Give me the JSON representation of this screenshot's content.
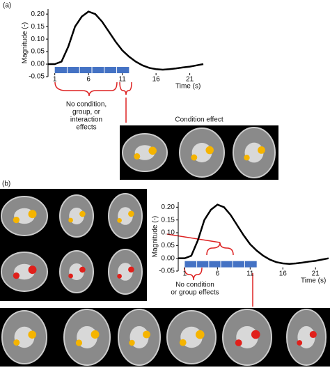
{
  "panels": [
    {
      "label": "(a)",
      "image_caption": "Condition effect"
    },
    {
      "label": "(b)"
    }
  ],
  "chart_data": [
    {
      "type": "line",
      "ylabel": "Magnitude (-)",
      "xlabel": "Time (s)",
      "color": "#000000",
      "x": [
        0,
        1,
        2,
        3,
        4,
        5,
        6,
        7,
        8,
        9,
        10,
        11,
        12,
        13,
        14,
        15,
        16,
        17,
        18,
        19,
        20,
        21,
        22,
        23
      ],
      "values": [
        0,
        0,
        0.01,
        0.07,
        0.15,
        0.19,
        0.21,
        0.2,
        0.17,
        0.13,
        0.09,
        0.055,
        0.03,
        0.01,
        -0.005,
        -0.015,
        -0.02,
        -0.022,
        -0.02,
        -0.017,
        -0.013,
        -0.01,
        -0.005,
        0
      ],
      "xlim": [
        0,
        23
      ],
      "ylim": [
        -0.05,
        0.22
      ],
      "yticks": [
        -0.05,
        {
          "value": 0,
          "label": "0.00"
        },
        0.05,
        {
          "value": 0.1,
          "label": "0.10"
        },
        0.15,
        {
          "value": 0.2,
          "label": "0.20"
        }
      ],
      "xticks": [
        1,
        6,
        11,
        16,
        21
      ],
      "stimulus": [
        1,
        12
      ],
      "stimulus_color": "#4472c4",
      "annotation_lines": [
        "No condition,",
        "group, or",
        "interaction",
        "effects"
      ]
    },
    {
      "type": "line",
      "ylabel": "Magnitude (-)",
      "xlabel": "Time (s)",
      "color": "#000000",
      "x": [
        0,
        1,
        2,
        3,
        4,
        5,
        6,
        7,
        8,
        9,
        10,
        11,
        12,
        13,
        14,
        15,
        16,
        17,
        18,
        19,
        20,
        21,
        22,
        23
      ],
      "values": [
        0,
        0,
        0.01,
        0.07,
        0.15,
        0.19,
        0.21,
        0.2,
        0.17,
        0.13,
        0.09,
        0.055,
        0.03,
        0.01,
        -0.005,
        -0.015,
        -0.02,
        -0.022,
        -0.02,
        -0.017,
        -0.013,
        -0.01,
        -0.005,
        0
      ],
      "xlim": [
        0,
        23
      ],
      "ylim": [
        -0.05,
        0.22
      ],
      "yticks": [
        -0.05,
        {
          "value": 0,
          "label": "0.00"
        },
        0.05,
        {
          "value": 0.1,
          "label": "0.10"
        },
        0.15,
        {
          "value": 0.2,
          "label": "0.20"
        }
      ],
      "xticks": [
        1,
        6,
        11,
        16,
        21
      ],
      "stimulus": [
        1,
        12
      ],
      "stimulus_color": "#4472c4",
      "annotation_lines": [
        "No condition",
        "or group effects"
      ]
    }
  ]
}
